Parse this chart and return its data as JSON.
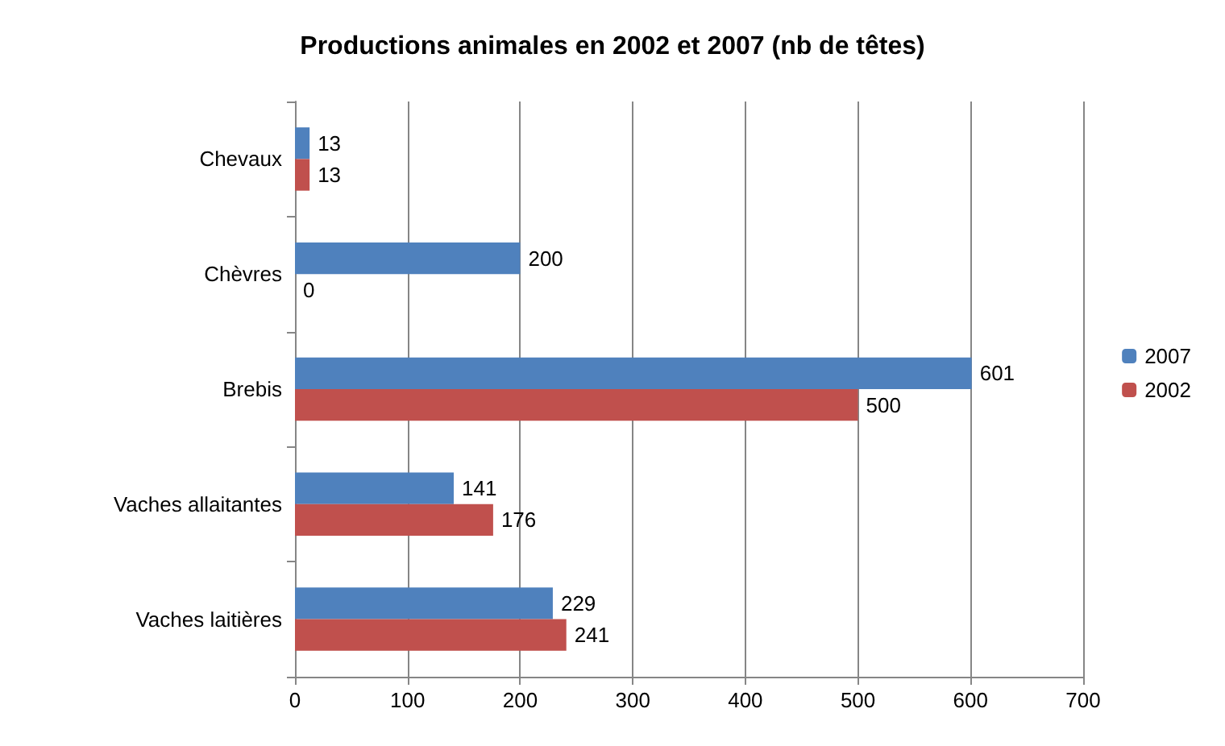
{
  "chart_data": {
    "type": "bar",
    "orientation": "horizontal",
    "title": "Productions animales en 2002 et 2007 (nb de têtes)",
    "categories": [
      "Chevaux",
      "Chèvres",
      "Brebis",
      "Vaches allaitantes",
      "Vaches laitières"
    ],
    "series": [
      {
        "name": "2007",
        "color": "#4f81bd",
        "values": [
          13,
          200,
          601,
          141,
          229
        ]
      },
      {
        "name": "2002",
        "color": "#c0504d",
        "values": [
          13,
          0,
          500,
          176,
          241
        ]
      }
    ],
    "xlim": [
      0,
      700
    ],
    "xticks": [
      0,
      100,
      200,
      300,
      400,
      500,
      600,
      700
    ],
    "grid": "x",
    "legend": "right",
    "data_labels": true
  }
}
